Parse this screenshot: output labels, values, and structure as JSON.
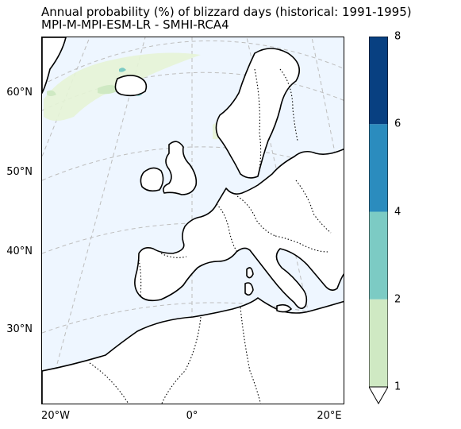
{
  "title": {
    "line1": "Annual probability (%) of blizzard days (historical: 1991-1995)",
    "line2": "MPI-M-MPI-ESM-LR - SMHI-RCA4"
  },
  "map": {
    "lat_labels": [
      "60°N",
      "50°N",
      "40°N",
      "30°N"
    ],
    "lon_labels": [
      "20°W",
      "0°",
      "20°E"
    ],
    "sea_color": "#eef6ff",
    "land_color": "#ffffff",
    "gridline_color": "#bbbbbb"
  },
  "colorbar": {
    "ticks": [
      "1",
      "2",
      "4",
      "6",
      "8"
    ],
    "bins": [
      {
        "from": 1,
        "to": 2,
        "color": "#cfe9c3"
      },
      {
        "from": 2,
        "to": 4,
        "color": "#7ccbc4"
      },
      {
        "from": 4,
        "to": 6,
        "color": "#2b8cbe"
      },
      {
        "from": 6,
        "to": 8,
        "color": "#084081"
      }
    ],
    "extend": "min"
  }
}
